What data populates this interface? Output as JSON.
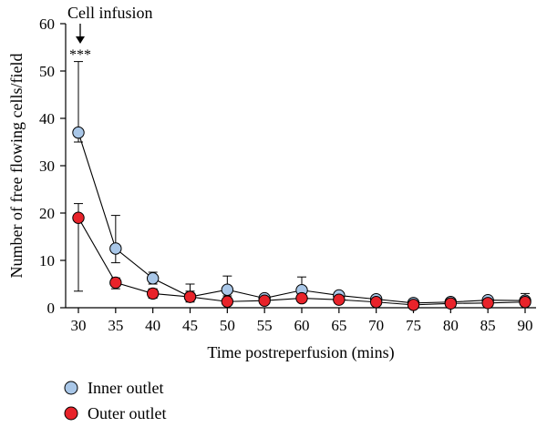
{
  "chart_data": {
    "type": "line",
    "xlabel": "Time postreperfusion (mins)",
    "ylabel": "Number of free flowing cells/field",
    "xlim": [
      30,
      90
    ],
    "ylim": [
      0,
      60
    ],
    "xticks": [
      30,
      35,
      40,
      45,
      50,
      55,
      60,
      65,
      70,
      75,
      80,
      85,
      90
    ],
    "yticks": [
      0,
      10,
      20,
      30,
      40,
      50,
      60
    ],
    "x": [
      30,
      35,
      40,
      45,
      50,
      55,
      60,
      65,
      70,
      75,
      80,
      85,
      90
    ],
    "series": [
      {
        "name": "Inner outlet",
        "color": "#a9c7e8",
        "values": [
          37,
          12.5,
          6.2,
          2.3,
          3.8,
          2.0,
          3.7,
          2.6,
          1.8,
          1.0,
          1.2,
          1.6,
          1.5
        ],
        "err_upper": [
          52,
          19.5,
          7.5,
          5.0,
          6.7,
          2.6,
          6.5,
          3.0,
          2.2,
          1.4,
          1.6,
          2.0,
          3.0
        ],
        "err_lower": [
          35,
          9.5,
          5.0,
          1.5,
          2.5,
          1.5,
          2.5,
          2.0,
          1.3,
          0.6,
          0.8,
          1.2,
          1.0
        ]
      },
      {
        "name": "Outer outlet",
        "color": "#e8232a",
        "values": [
          19,
          5.3,
          3.0,
          2.3,
          1.3,
          1.5,
          2.0,
          1.7,
          1.2,
          0.6,
          0.9,
          1.0,
          1.2
        ],
        "err_upper": [
          22,
          6.3,
          4.0,
          3.5,
          1.8,
          2.0,
          2.6,
          2.2,
          1.6,
          0.9,
          1.3,
          1.4,
          1.7
        ],
        "err_lower": [
          3.5,
          4.0,
          2.0,
          1.2,
          0.8,
          1.0,
          1.3,
          1.2,
          0.8,
          0.3,
          0.5,
          0.6,
          0.7
        ]
      }
    ],
    "annotations": [
      {
        "text": "Cell infusion",
        "x": 30
      },
      {
        "text": "***",
        "x": 30
      }
    ],
    "legend_position": "bottom-left",
    "grid": false
  }
}
